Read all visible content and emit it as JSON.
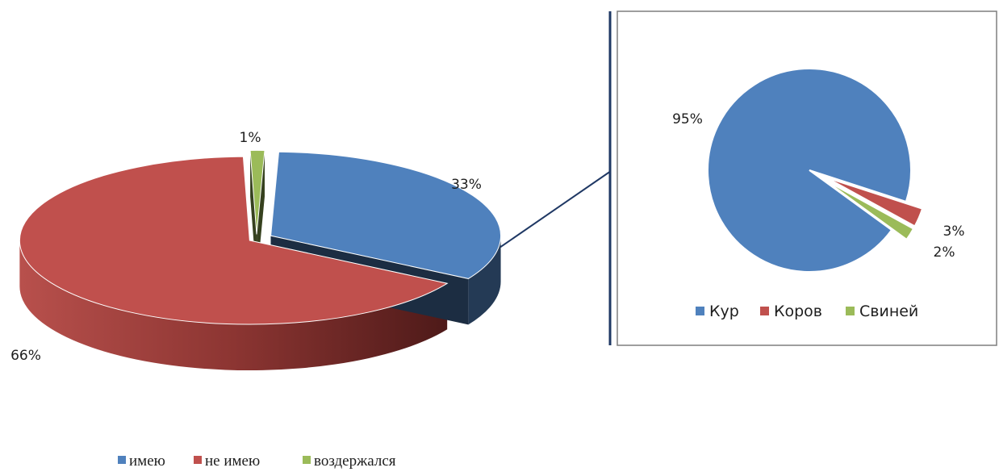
{
  "chart_data": [
    {
      "type": "pie",
      "style": "3d-exploded",
      "categories": [
        "имею",
        "не имею",
        "воздержался"
      ],
      "values": [
        33,
        66,
        1
      ],
      "labels": [
        "33%",
        "66%",
        "1%"
      ],
      "colors": [
        "#4f81bd",
        "#c0504d",
        "#9bbb59"
      ],
      "legend": "bottom",
      "title": ""
    },
    {
      "type": "pie",
      "style": "2d-exploded",
      "categories": [
        "Кур",
        "Коров",
        "Свиней"
      ],
      "values": [
        95,
        3,
        2
      ],
      "labels": [
        "95%",
        "3%",
        "2%"
      ],
      "colors": [
        "#4f81bd",
        "#c0504d",
        "#9bbb59"
      ],
      "legend": "bottom",
      "title": ""
    }
  ]
}
